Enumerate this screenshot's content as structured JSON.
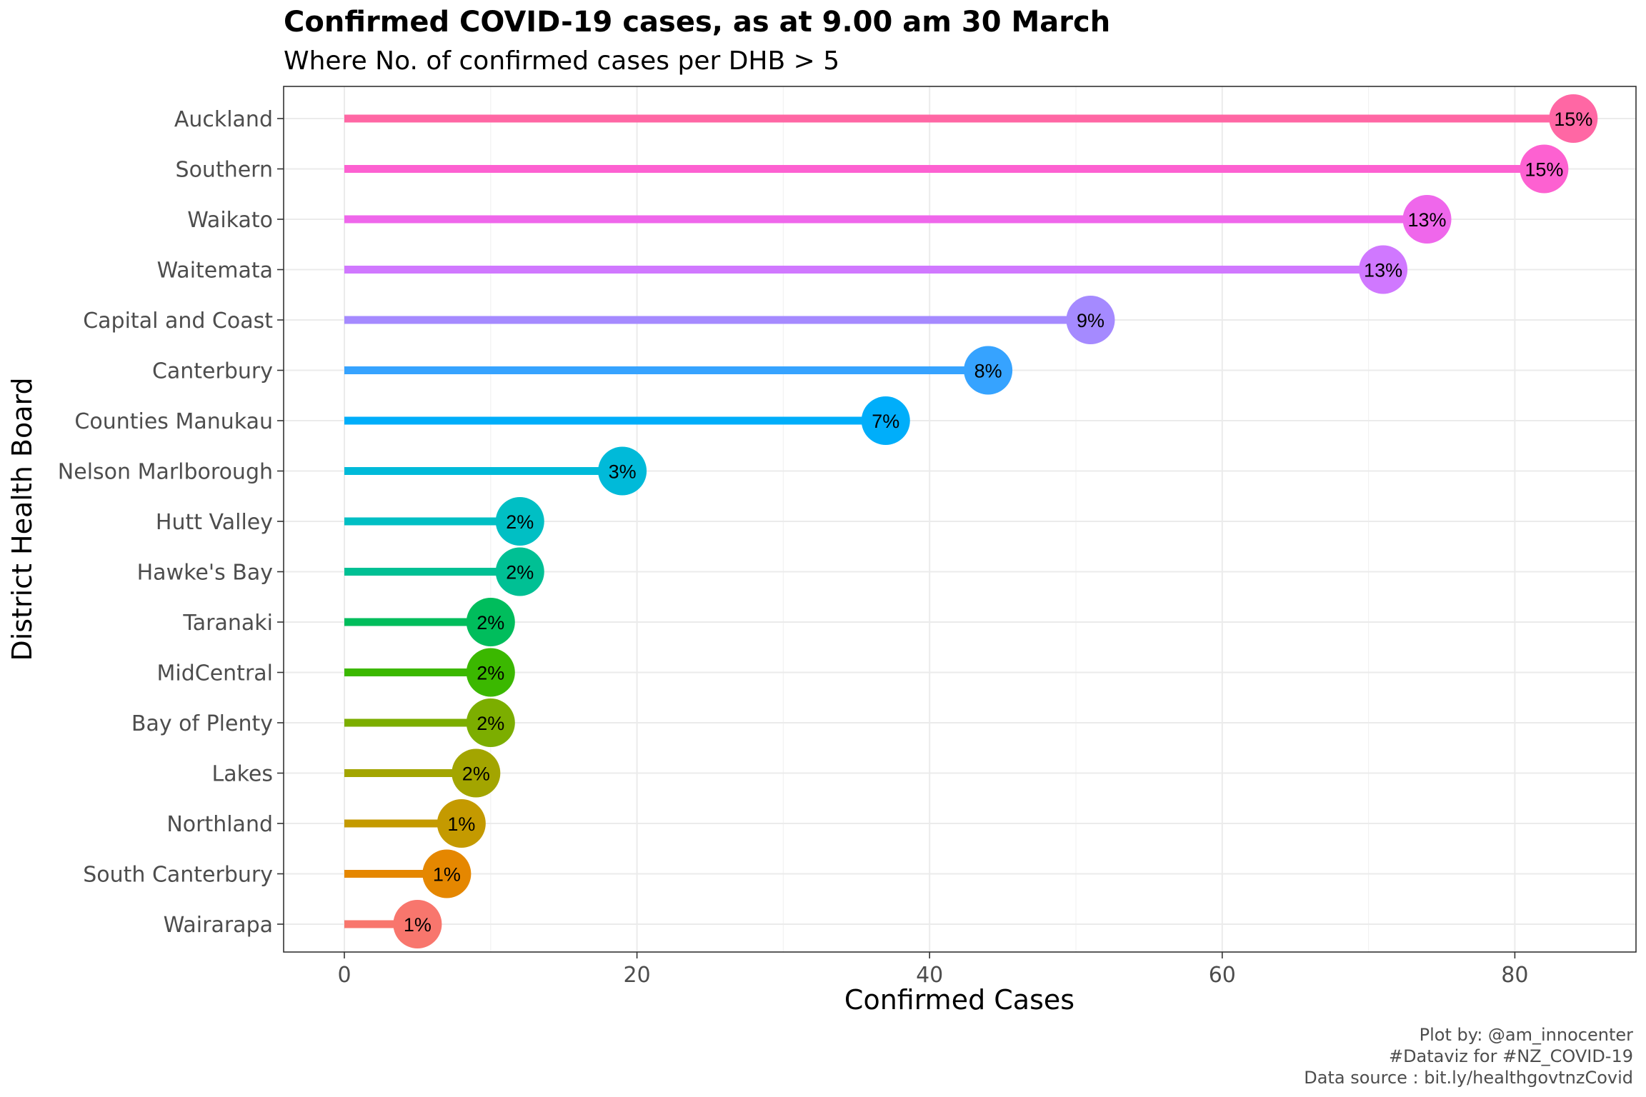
{
  "chart_data": {
    "type": "lollipop",
    "title": "Confirmed COVID-19 cases, as at 9.00 am 30 March",
    "subtitle": "Where No. of confirmed cases per DHB > 5",
    "xlabel": "Confirmed Cases",
    "ylabel": "District Health Board",
    "xlim": [
      0,
      85
    ],
    "x_ticks": [
      0,
      20,
      40,
      60,
      80
    ],
    "x_tick_labels": [
      "0",
      "20",
      "40",
      "60",
      "80"
    ],
    "grid": true,
    "legend": "none",
    "caption": [
      "Plot by: @am_innocenter",
      "#Dataviz for #NZ_COVID-19",
      "Data source : bit.ly/healthgovtnzCovid"
    ],
    "categories": [
      "Auckland",
      "Southern",
      "Waikato",
      "Waitemata",
      "Capital and Coast",
      "Canterbury",
      "Counties Manukau",
      "Nelson Marlborough",
      "Hutt Valley",
      "Hawke's Bay",
      "Taranaki",
      "MidCentral",
      "Bay of Plenty",
      "Lakes",
      "Northland",
      "South Canterbury",
      "Wairarapa"
    ],
    "values": [
      84,
      82,
      74,
      71,
      51,
      44,
      37,
      19,
      12,
      12,
      10,
      10,
      10,
      9,
      8,
      7,
      5
    ],
    "labels": [
      "15%",
      "15%",
      "13%",
      "13%",
      "9%",
      "8%",
      "7%",
      "3%",
      "2%",
      "2%",
      "2%",
      "2%",
      "2%",
      "2%",
      "1%",
      "1%",
      "1%"
    ],
    "colors": [
      "#FF67A4",
      "#FD61D1",
      "#EF67EB",
      "#D078FF",
      "#A58AFF",
      "#36A3FF",
      "#00AEFA",
      "#00BAD9",
      "#00BFC4",
      "#00C094",
      "#00BD5C",
      "#3BB800",
      "#7CAE00",
      "#A3A500",
      "#C49A00",
      "#E58700",
      "#F8766D"
    ]
  }
}
